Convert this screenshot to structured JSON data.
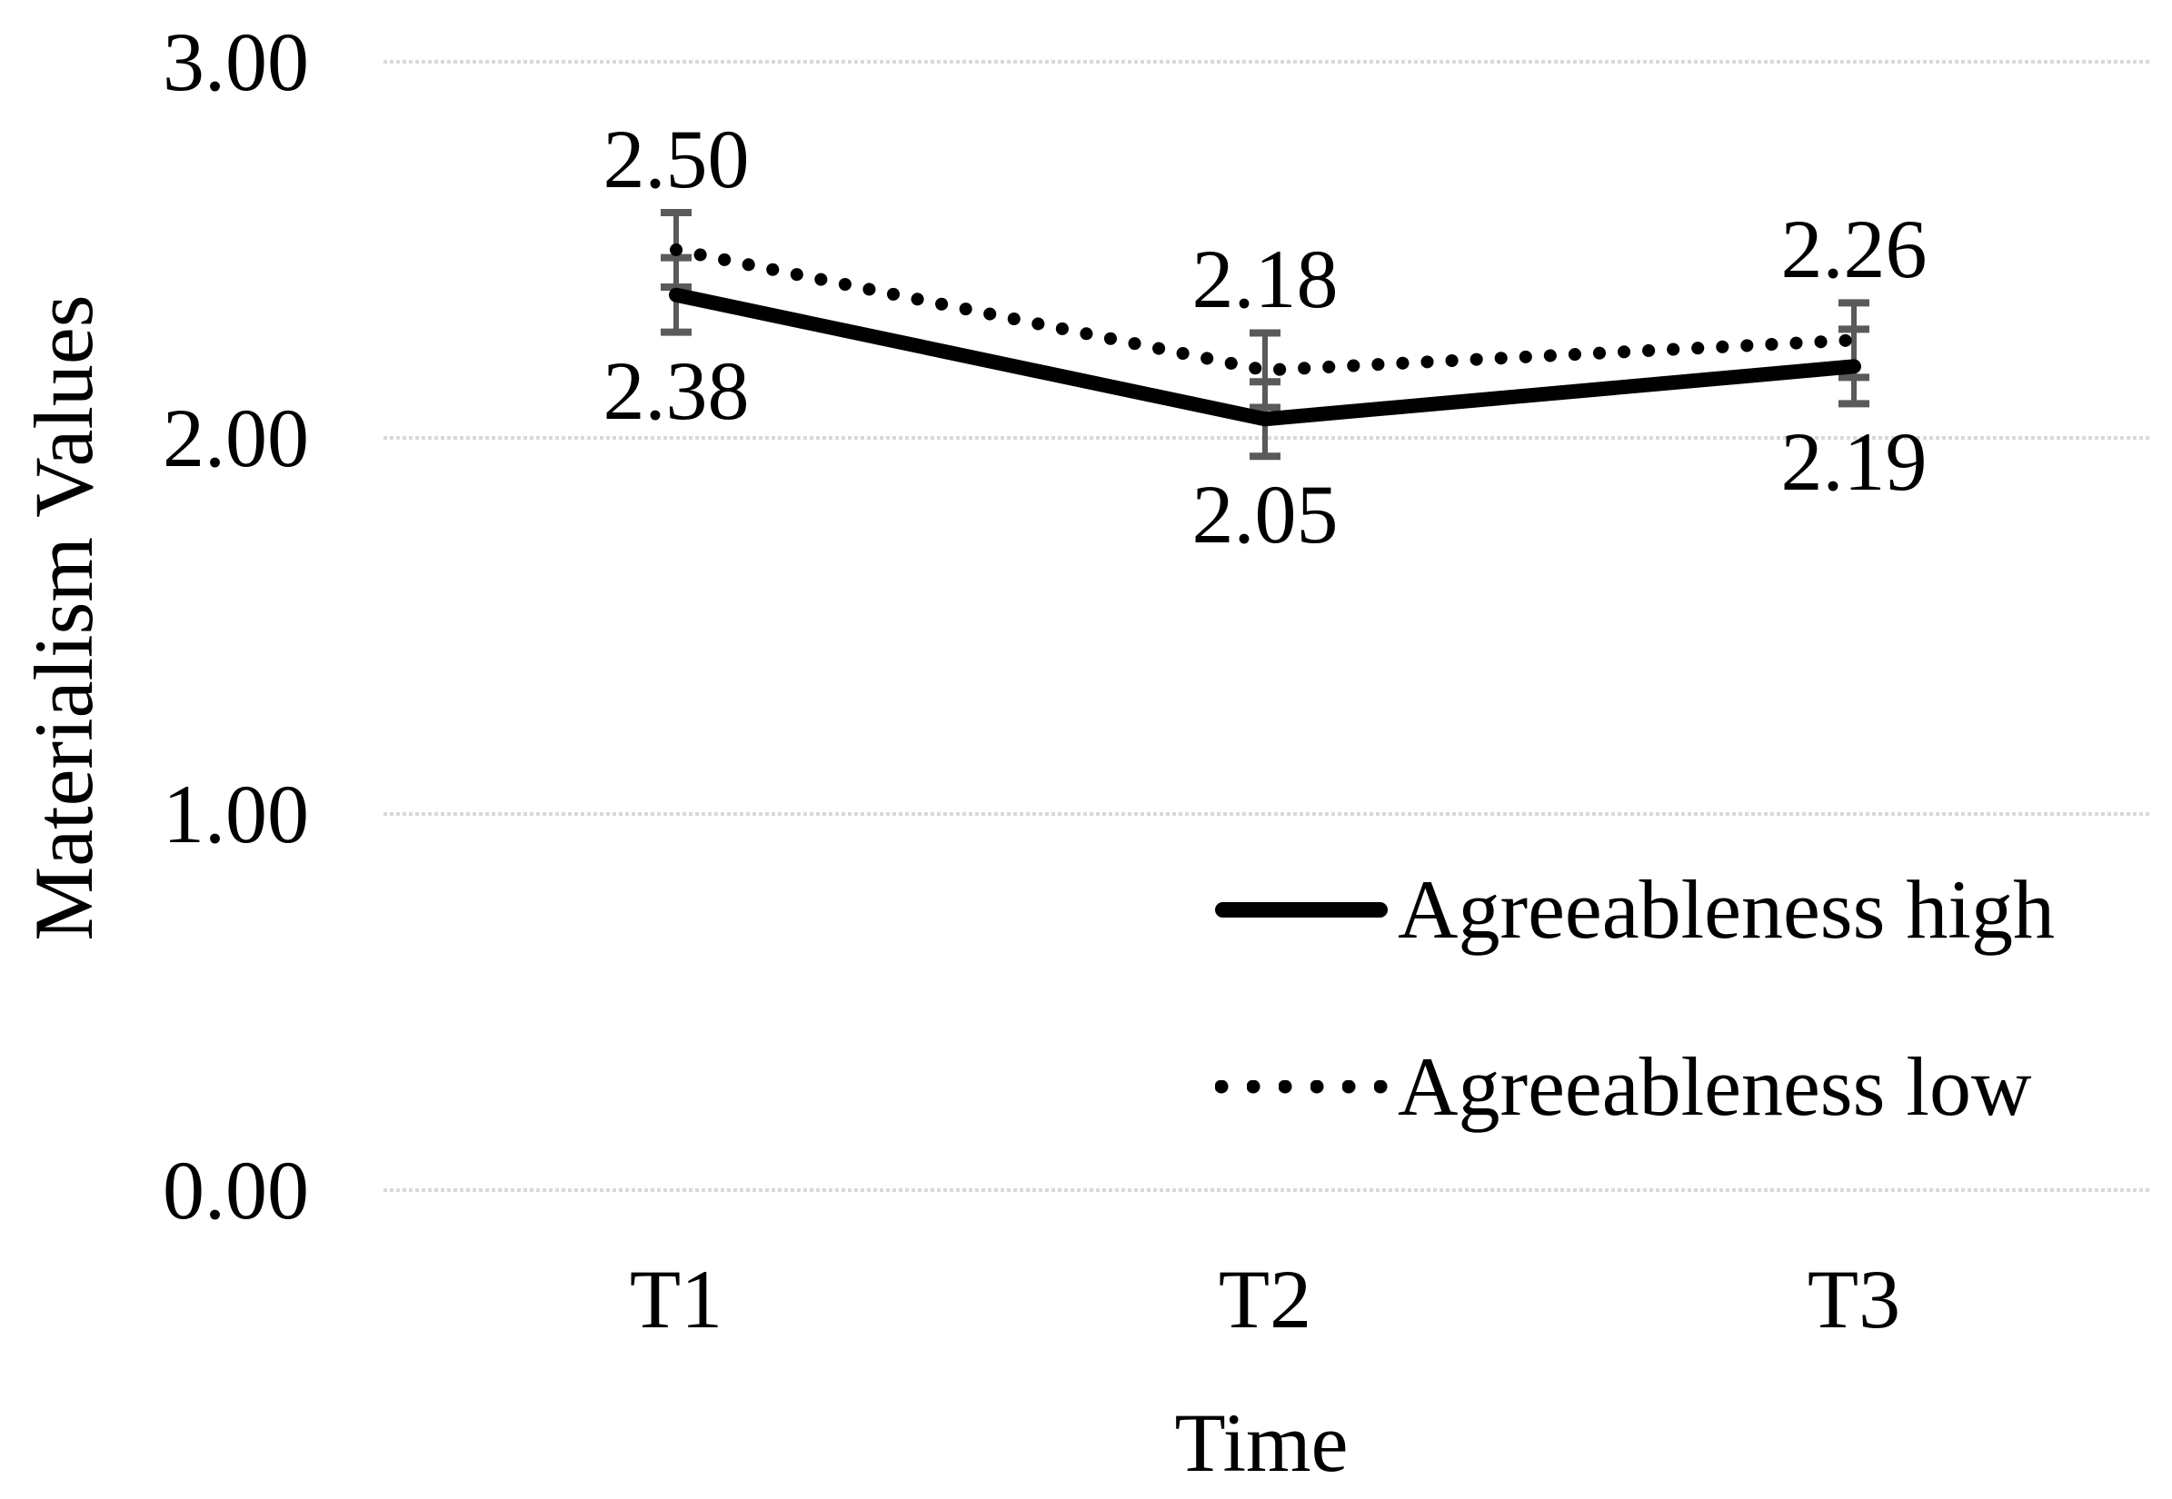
{
  "chart_data": {
    "type": "line",
    "title": "",
    "xlabel": "Time",
    "ylabel": "Materialism Values",
    "categories": [
      "T1",
      "T2",
      "T3"
    ],
    "y_ticks": [
      {
        "value": 3,
        "label": "3.00"
      },
      {
        "value": 2,
        "label": "2.00"
      },
      {
        "value": 1,
        "label": "1.00"
      },
      {
        "value": 0,
        "label": "0.00"
      }
    ],
    "ylim": [
      0,
      3
    ],
    "grid": true,
    "legend_position": "inside-right-lower",
    "error_bars": {
      "shown": true,
      "approx_half_value": 0.1,
      "color": "#5a5a5a"
    },
    "series": [
      {
        "name": "Agreeableness low",
        "line_style": "dotted",
        "values": [
          2.5,
          2.18,
          2.26
        ],
        "data_labels": [
          "2.50",
          "2.18",
          "2.26"
        ],
        "label_side": "above"
      },
      {
        "name": "Agreeableness high",
        "line_style": "solid",
        "values": [
          2.38,
          2.05,
          2.19
        ],
        "data_labels": [
          "2.38",
          "2.05",
          "2.19"
        ],
        "label_side": "below"
      }
    ],
    "colors": {
      "line": "#000000",
      "gridline": "#d9d9d9",
      "error_bar": "#5a5a5a",
      "text": "#000000",
      "background": "#ffffff"
    }
  }
}
